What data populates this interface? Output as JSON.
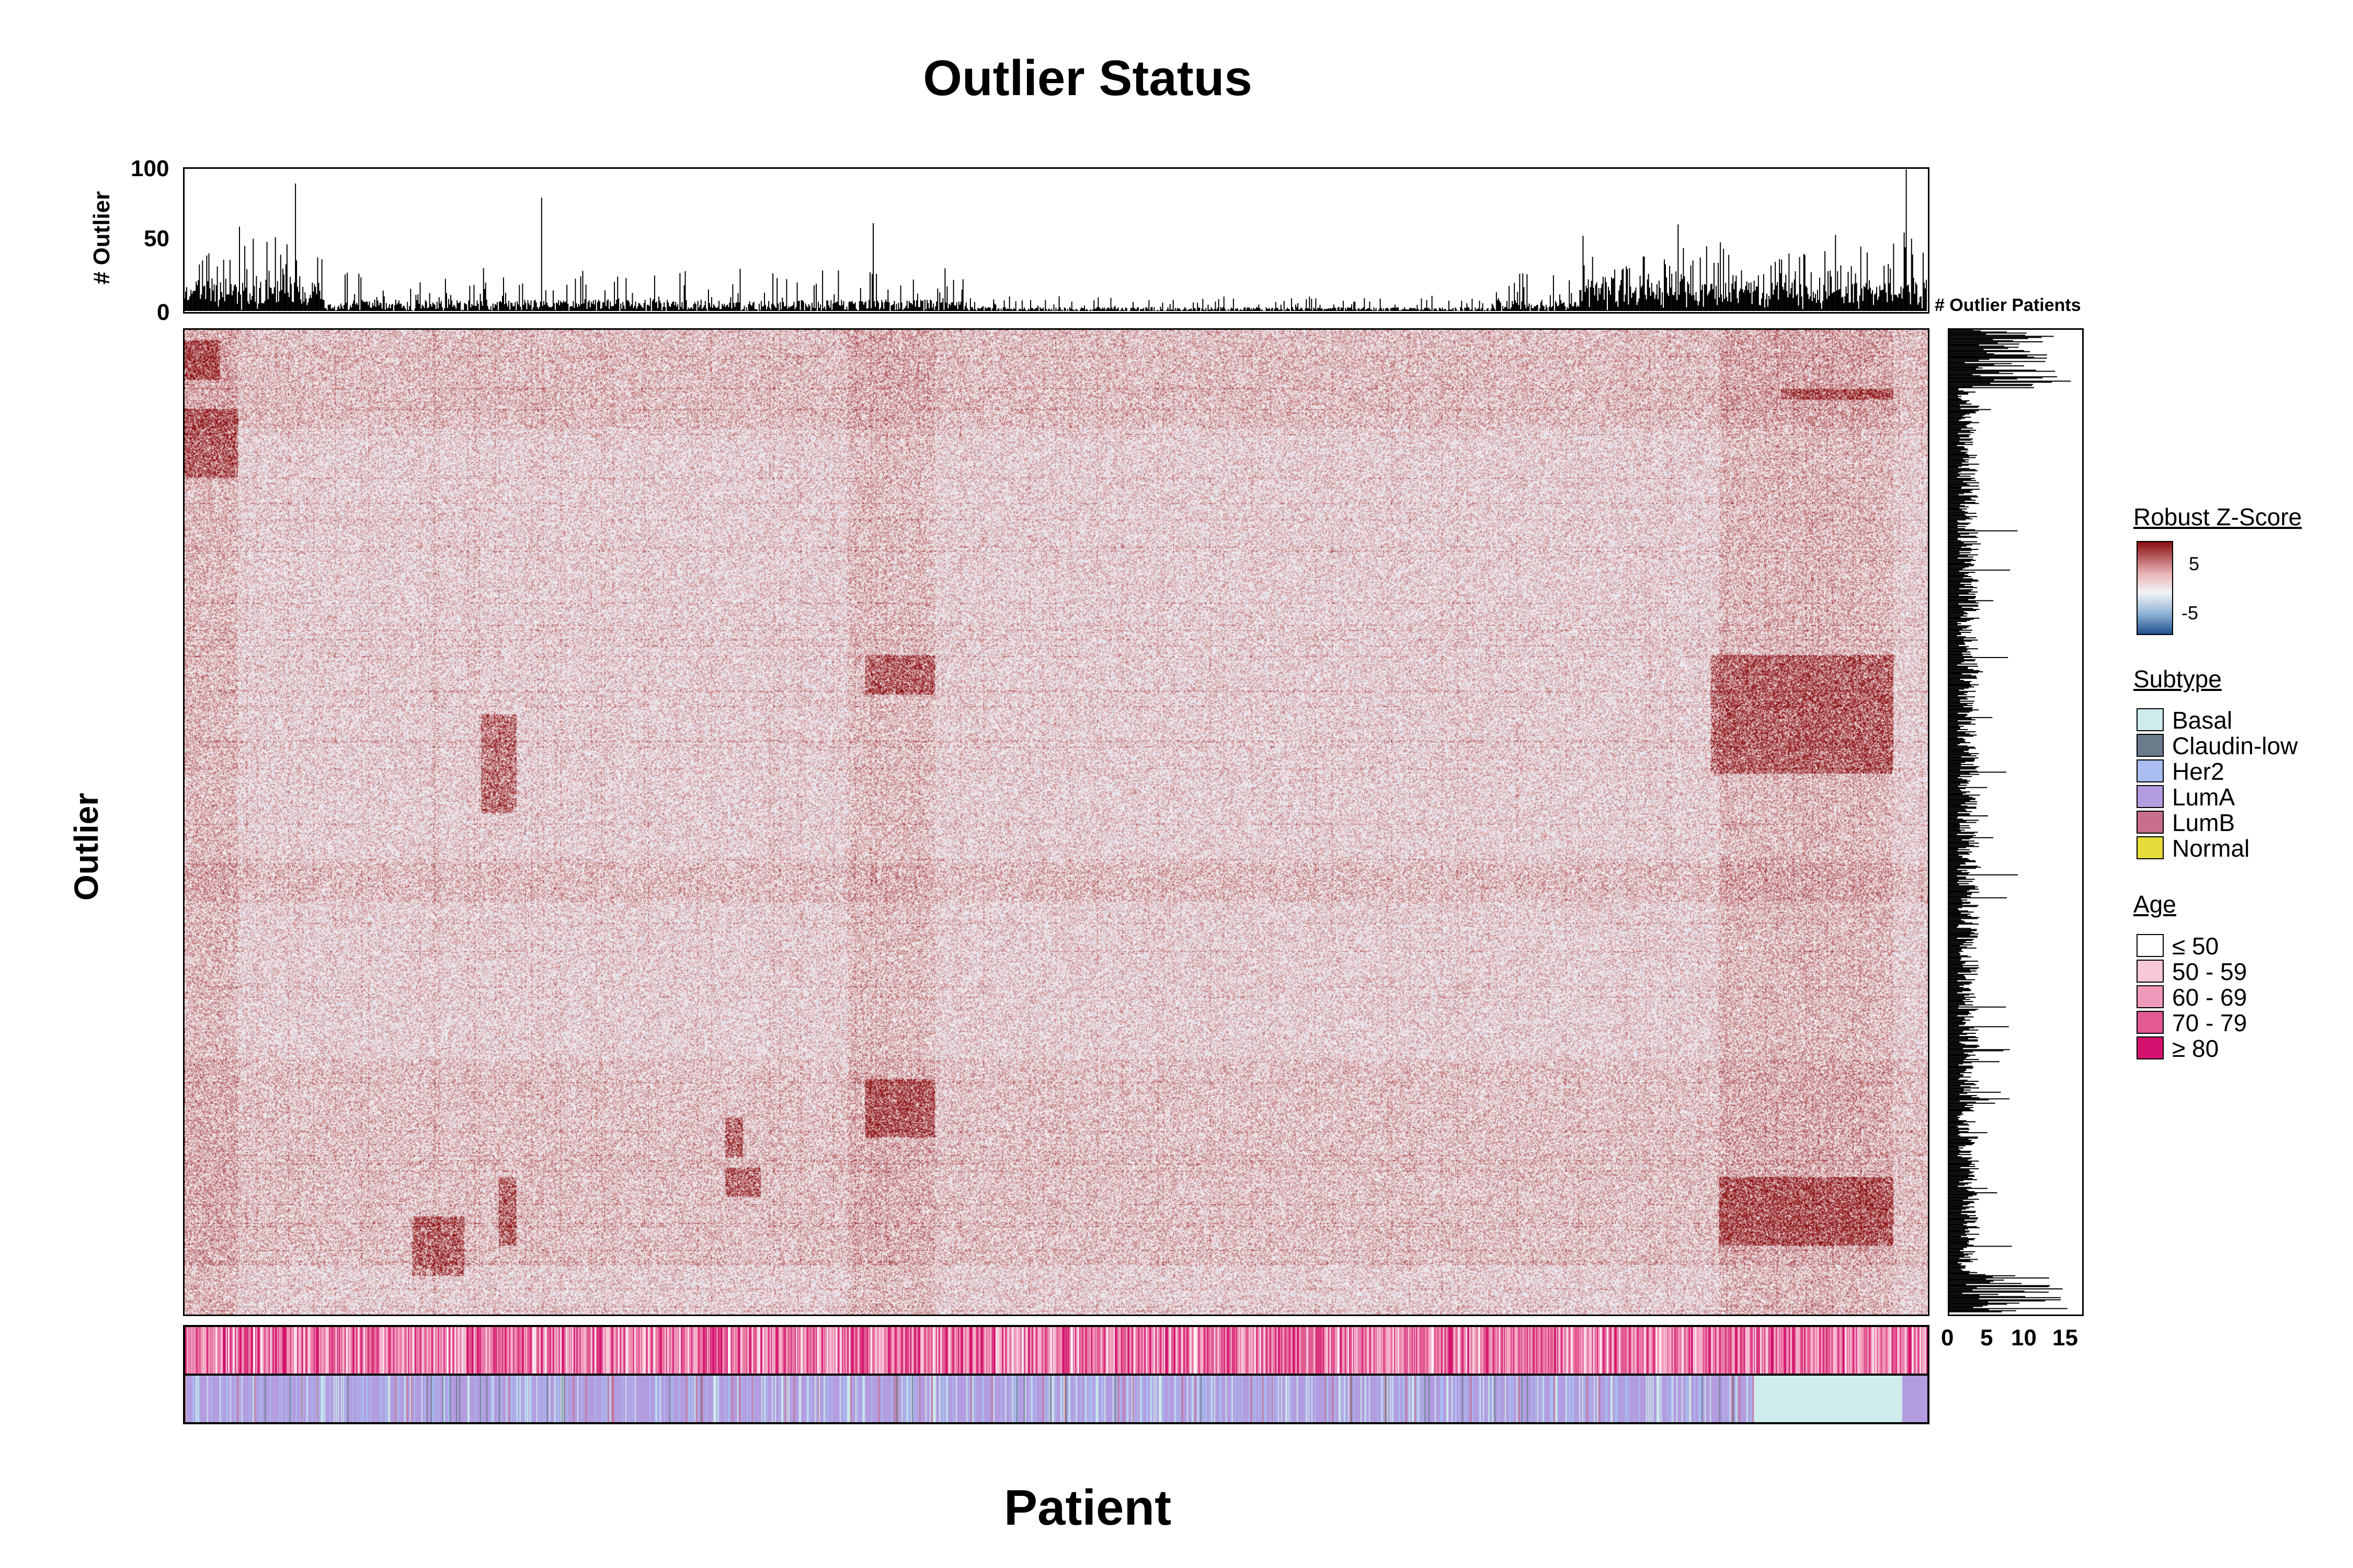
{
  "title": "Outlier Status",
  "x_axis_label": "Patient",
  "y_axis_label": "Outlier",
  "top_panel": {
    "ylabel": "# Outlier",
    "yticks": [
      "100",
      "50",
      "0"
    ]
  },
  "right_panel": {
    "label": "# Outlier Patients",
    "xticks": [
      "0",
      "5",
      "10",
      "15"
    ]
  },
  "legend": {
    "zscore": {
      "title": "Robust Z-Score",
      "ticks": [
        "5",
        "-5"
      ],
      "colors": {
        "high": "#8b0f12",
        "mid": "#f4f4f6",
        "low": "#1e4f8a"
      }
    },
    "subtype": {
      "title": "Subtype",
      "items": [
        {
          "label": "Basal",
          "color": "#cdeceb"
        },
        {
          "label": "Claudin-low",
          "color": "#6b7c8c"
        },
        {
          "label": "Her2",
          "color": "#a9bdf0"
        },
        {
          "label": "LumA",
          "color": "#b39ce0"
        },
        {
          "label": "LumB",
          "color": "#c86f8f"
        },
        {
          "label": "Normal",
          "color": "#e6dc3a"
        }
      ]
    },
    "age": {
      "title": "Age",
      "items": [
        {
          "label": "≤ 50",
          "color": "#ffffff"
        },
        {
          "label": "50 - 59",
          "color": "#f8c8d8"
        },
        {
          "label": "60 - 69",
          "color": "#f09abb"
        },
        {
          "label": "70 - 79",
          "color": "#e35a92"
        },
        {
          "label": "≥ 80",
          "color": "#d4106e"
        }
      ]
    }
  },
  "chart_data": {
    "type": "heatmap",
    "title": "Outlier Status",
    "xlabel": "Patient",
    "ylabel": "Outlier",
    "color_scale": {
      "label": "Robust Z-Score",
      "ticks": [
        5,
        -5
      ]
    },
    "top_barplot": {
      "ylabel": "# Outlier",
      "ylim": [
        0,
        100
      ]
    },
    "right_barplot": {
      "label": "# Outlier Patients",
      "xlim": [
        0,
        17
      ]
    },
    "annotation_tracks": [
      "Age",
      "Subtype"
    ]
  }
}
